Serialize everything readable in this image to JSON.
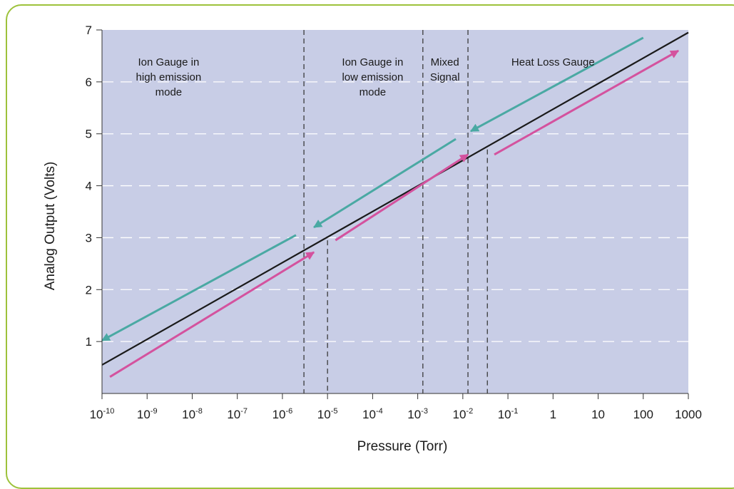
{
  "chart_data": {
    "type": "line",
    "xscale": "log",
    "xlabel": "Pressure (Torr)",
    "ylabel": "Analog Output (Volts)",
    "xlim": [
      1e-10,
      1000
    ],
    "ylim": [
      0,
      7
    ],
    "x_ticks": [
      {
        "base": "10",
        "exp": "-10"
      },
      {
        "base": "10",
        "exp": "-9"
      },
      {
        "base": "10",
        "exp": "-8"
      },
      {
        "base": "10",
        "exp": "-7"
      },
      {
        "base": "10",
        "exp": "-6"
      },
      {
        "base": "10",
        "exp": "-5"
      },
      {
        "base": "10",
        "exp": "-4"
      },
      {
        "base": "10",
        "exp": "-3"
      },
      {
        "base": "10",
        "exp": "-2"
      },
      {
        "base": "10",
        "exp": "-1"
      },
      {
        "base": "1",
        "exp": ""
      },
      {
        "base": "10",
        "exp": ""
      },
      {
        "base": "100",
        "exp": ""
      },
      {
        "base": "1000",
        "exp": ""
      }
    ],
    "y_ticks": [
      "1",
      "2",
      "3",
      "4",
      "5",
      "6",
      "7"
    ],
    "grid": "horizontal dashed",
    "background_color": "#c8cde6",
    "regions": [
      {
        "lines": [
          "Ion Gauge in",
          "high emission",
          "mode"
        ],
        "x": 3e-09
      },
      {
        "lines": [
          "Ion Gauge in",
          "low emission",
          "mode"
        ],
        "x": 0.0001
      },
      {
        "lines": [
          "Mixed",
          "Signal"
        ],
        "x": 0.004
      },
      {
        "lines": [
          "Heat Loss Gauge"
        ],
        "x": 1
      }
    ],
    "boundaries": [
      {
        "x": 3e-06,
        "y_top": 7
      },
      {
        "x": 1e-05,
        "y_top": 2.95
      },
      {
        "x": 0.0013,
        "y_top": 7
      },
      {
        "x": 0.013,
        "y_top": 7
      },
      {
        "x": 0.035,
        "y_top": 4.7
      }
    ],
    "series": [
      {
        "color": "#1a1a1a",
        "segments": [
          {
            "x": [
              1e-10,
              1000
            ],
            "y": [
              0.55,
              6.95
            ]
          }
        ]
      },
      {
        "color": "#4aa9a3",
        "segments": [
          {
            "x": [
              1e-10,
              2e-06
            ],
            "y": [
              1.02,
              3.05
            ],
            "arrow": "start"
          },
          {
            "x": [
              5e-06,
              0.007
            ],
            "y": [
              3.2,
              4.9
            ],
            "arrow": "start"
          },
          {
            "x": [
              0.015,
              100
            ],
            "y": [
              5.05,
              6.85
            ],
            "arrow": "start"
          }
        ]
      },
      {
        "color": "#d4529e",
        "segments": [
          {
            "x": [
              1.5e-10,
              5e-06
            ],
            "y": [
              0.32,
              2.72
            ],
            "arrow": "end"
          },
          {
            "x": [
              1.5e-05,
              0.013
            ],
            "y": [
              2.95,
              4.6
            ],
            "arrow": "end"
          },
          {
            "x": [
              0.05,
              600
            ],
            "y": [
              4.6,
              6.6
            ],
            "arrow": "end"
          }
        ]
      }
    ]
  }
}
